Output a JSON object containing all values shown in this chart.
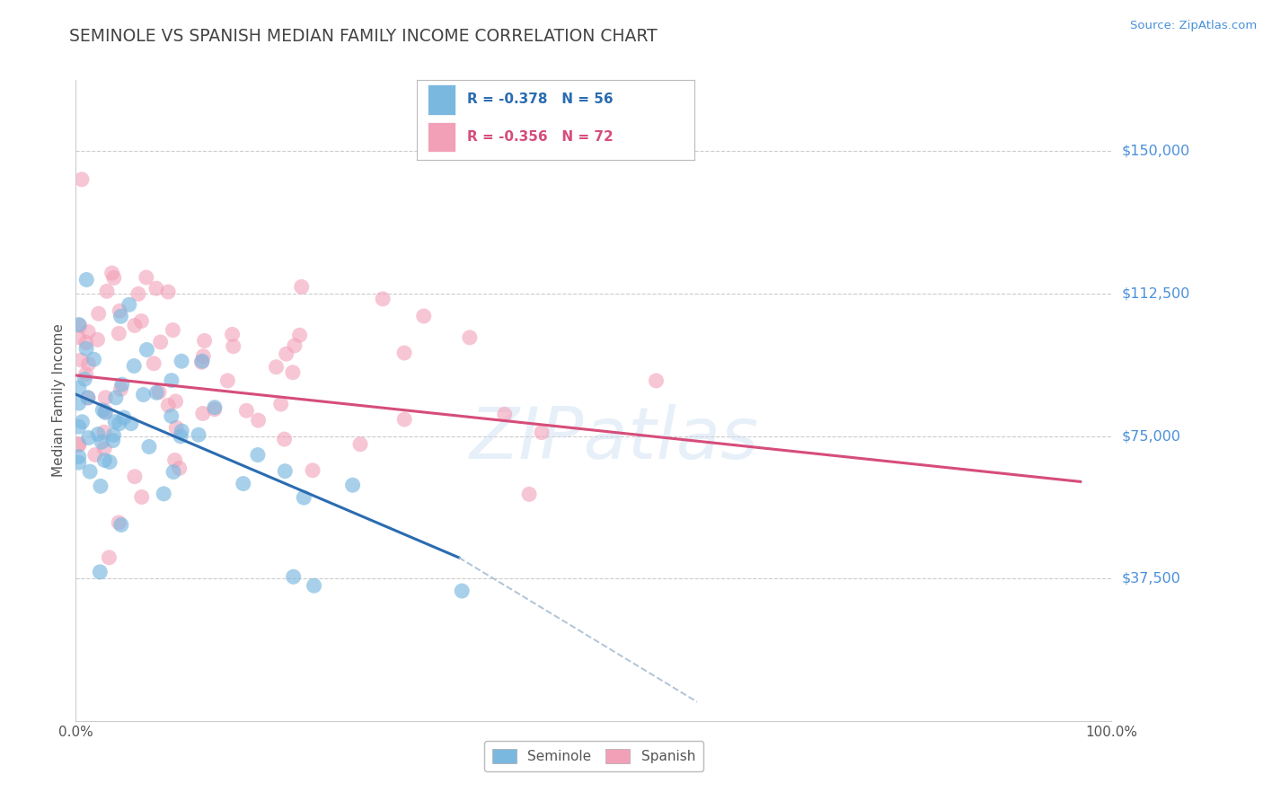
{
  "title": "SEMINOLE VS SPANISH MEDIAN FAMILY INCOME CORRELATION CHART",
  "source": "Source: ZipAtlas.com",
  "ylabel": "Median Family Income",
  "xlim": [
    0,
    100
  ],
  "ylim": [
    0,
    168750
  ],
  "yticks": [
    37500,
    75000,
    112500,
    150000
  ],
  "ytick_labels": [
    "$37,500",
    "$75,000",
    "$112,500",
    "$150,000"
  ],
  "watermark": "ZIPatlas",
  "seminole_color": "#7ab8e0",
  "spanish_color": "#f2a0b8",
  "seminole_line_color": "#2b6cb0",
  "spanish_line_color": "#d64d7a",
  "dash_color": "#b0c4d8",
  "seminole_R": -0.378,
  "seminole_N": 56,
  "spanish_R": -0.356,
  "spanish_N": 72,
  "background_color": "#ffffff",
  "grid_color": "#cccccc",
  "title_color": "#444444",
  "label_color": "#4a90d9",
  "tick_color": "#555555",
  "blue_line_x0": 0,
  "blue_line_y0": 86000,
  "blue_line_x1": 37,
  "blue_line_y1": 43000,
  "blue_dash_x1": 60,
  "blue_dash_y1": 5000,
  "pink_line_x0": 0,
  "pink_line_y0": 91000,
  "pink_line_x1": 97,
  "pink_line_y1": 63000
}
